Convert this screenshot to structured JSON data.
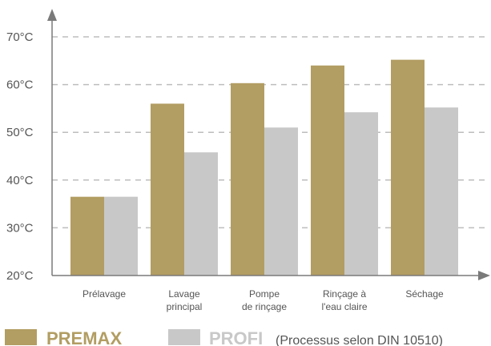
{
  "colors": {
    "premax": "#b29d62",
    "profi": "#c8c8c8",
    "axis": "#7a7a7a",
    "grid": "#bdbdbd",
    "text": "#555555"
  },
  "chart_data": {
    "type": "bar",
    "categories": [
      [
        "Prélavage"
      ],
      [
        "Lavage",
        "principal"
      ],
      [
        "Pompe",
        "de rinçage"
      ],
      [
        "Rinçage à",
        "l'eau claire"
      ],
      [
        "Séchage"
      ]
    ],
    "series": [
      {
        "name": "PREMAX",
        "values": [
          36.5,
          56,
          60.3,
          64,
          65.2
        ]
      },
      {
        "name": "PROFI",
        "values": [
          36.5,
          45.8,
          51,
          54.2,
          55.2
        ]
      }
    ],
    "yticks": [
      "20°C",
      "30°C",
      "40°C",
      "50°C",
      "60°C",
      "70°C"
    ],
    "ylim": [
      20,
      70
    ],
    "grid": true,
    "legend": {
      "position": "bottom-left",
      "premax_label": "PREMAX",
      "profi_label": "PROFI",
      "profi_note": "(Processus selon DIN 10510)"
    }
  }
}
